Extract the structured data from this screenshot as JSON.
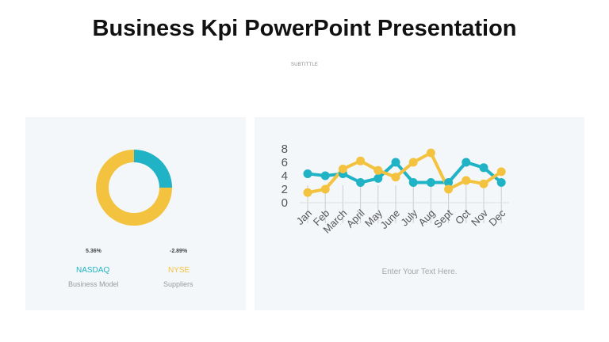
{
  "page": {
    "title": "Business Kpi PowerPoint Presentation",
    "subtitle": "SUBTITTLE"
  },
  "colors": {
    "teal": "#1fb3c5",
    "yellow": "#f3c23f",
    "axis": "#555555",
    "grid": "#cccccc"
  },
  "left_panel": {
    "metrics": [
      {
        "name": "NASDAQ",
        "change": "5.36%",
        "description": "Business Model",
        "color": "#1fb3c5"
      },
      {
        "name": "NYSE",
        "change": "-2.89%",
        "description": "Suppliers",
        "color": "#f3c23f"
      }
    ]
  },
  "right_panel": {
    "body_text": "Enter Your Text Here."
  },
  "chart_data": [
    {
      "type": "pie",
      "categories": [
        "NASDAQ",
        "NYSE"
      ],
      "values": [
        25,
        75
      ],
      "colors": [
        "#1fb3c5",
        "#f3c23f"
      ]
    },
    {
      "type": "line",
      "categories": [
        "Jan",
        "Feb",
        "March",
        "April",
        "May",
        "June",
        "July",
        "Aug",
        "Sept",
        "Oct",
        "Nov",
        "Dec"
      ],
      "series": [
        {
          "color": "#1fb3c5",
          "values": [
            4.3,
            4.0,
            4.3,
            3.0,
            3.6,
            6.0,
            3.0,
            3.0,
            3.0,
            6.0,
            5.2,
            3.0
          ]
        },
        {
          "color": "#f3c23f",
          "values": [
            1.5,
            2.0,
            5.0,
            6.2,
            4.8,
            3.8,
            6.0,
            7.4,
            2.0,
            3.3,
            2.8,
            4.6
          ]
        }
      ],
      "yticks": [
        "0",
        "2",
        "4",
        "6",
        "8"
      ],
      "ylim": [
        0,
        8
      ],
      "grid": false
    }
  ]
}
